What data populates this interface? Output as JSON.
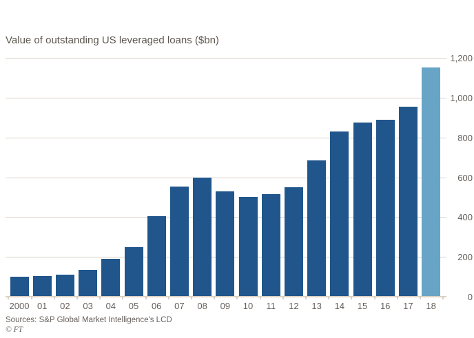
{
  "title": "Value of outstanding US leveraged loans ($bn)",
  "source_line": "Sources: S&P Global Market Intelligence's LCD",
  "credit": "© FT",
  "colors": {
    "bar": "#20568C",
    "bar_highlight": "#68A4C5",
    "gridline": "#DAD0C5",
    "axis_text": "#66605B",
    "title_text": "#5D574F"
  },
  "chart_data": {
    "type": "bar",
    "title": "Value of outstanding US leveraged loans ($bn)",
    "xlabel": "",
    "ylabel": "$bn",
    "categories": [
      "2000",
      "01",
      "02",
      "03",
      "04",
      "05",
      "06",
      "07",
      "08",
      "09",
      "10",
      "11",
      "12",
      "13",
      "14",
      "15",
      "16",
      "17",
      "18"
    ],
    "values": [
      100,
      105,
      112,
      135,
      190,
      250,
      405,
      555,
      600,
      530,
      500,
      515,
      550,
      685,
      830,
      875,
      890,
      955,
      1150
    ],
    "highlight_index": 18,
    "highlight_category": "18",
    "ylim": [
      0,
      1200
    ],
    "yticks": [
      0,
      200,
      400,
      600,
      800,
      1000,
      1200
    ],
    "ytick_labels": [
      "0",
      "200",
      "400",
      "600",
      "800",
      "1,000",
      "1,200"
    ],
    "ytick_side": "right",
    "grid": true,
    "legend": false
  }
}
